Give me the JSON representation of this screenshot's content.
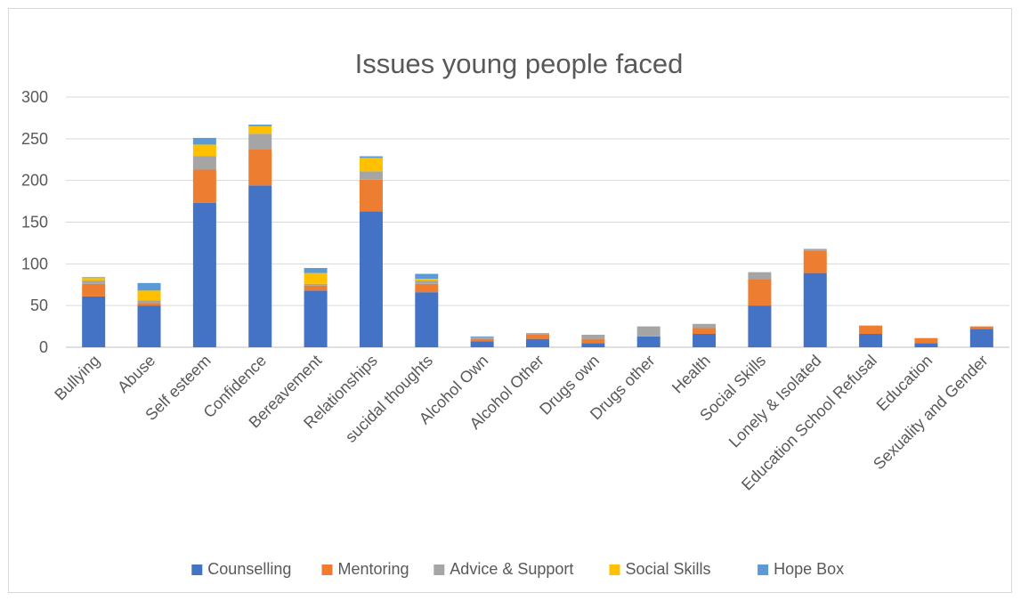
{
  "chart_data": {
    "type": "bar",
    "stacked": true,
    "title": "Issues young people faced",
    "xlabel": "",
    "ylabel": "",
    "ylim": [
      0,
      300
    ],
    "yticks": [
      0,
      50,
      100,
      150,
      200,
      250,
      300
    ],
    "grid": true,
    "legend_position": "bottom",
    "categories": [
      "Bullying",
      "Abuse",
      "Self esteem",
      "Confidence",
      "Bereavement",
      "Relationships",
      "sucidal thoughts",
      "Alcohol Own",
      "Alcohol Other",
      "Drugs own",
      "Drugs other",
      "Health",
      "Social Skills",
      "Lonely & Isolated",
      "Education School Refusal",
      "Education",
      "Sexuality and Gender"
    ],
    "series": [
      {
        "name": "Counselling",
        "color": "#4472c4",
        "values": [
          61,
          50,
          173,
          194,
          68,
          163,
          66,
          7,
          10,
          5,
          13,
          16,
          50,
          89,
          16,
          5,
          22
        ]
      },
      {
        "name": "Mentoring",
        "color": "#ed7d31",
        "values": [
          15,
          3,
          40,
          43,
          6,
          38,
          10,
          3,
          5,
          5,
          0,
          7,
          32,
          27,
          10,
          6,
          3
        ]
      },
      {
        "name": "Advice & Support",
        "color": "#a5a5a5",
        "values": [
          4,
          3,
          16,
          19,
          2,
          10,
          4,
          2,
          2,
          5,
          12,
          5,
          8,
          2,
          0,
          0,
          0
        ]
      },
      {
        "name": "Social Skills",
        "color": "#ffc000",
        "values": [
          3,
          12,
          14,
          9,
          13,
          16,
          2,
          0,
          0,
          0,
          0,
          0,
          0,
          0,
          0,
          0,
          0
        ]
      },
      {
        "name": "Hope Box",
        "color": "#5b9bd5",
        "values": [
          1,
          9,
          8,
          2,
          6,
          2,
          6,
          1,
          0,
          0,
          0,
          0,
          0,
          0,
          0,
          0,
          0
        ]
      }
    ]
  }
}
